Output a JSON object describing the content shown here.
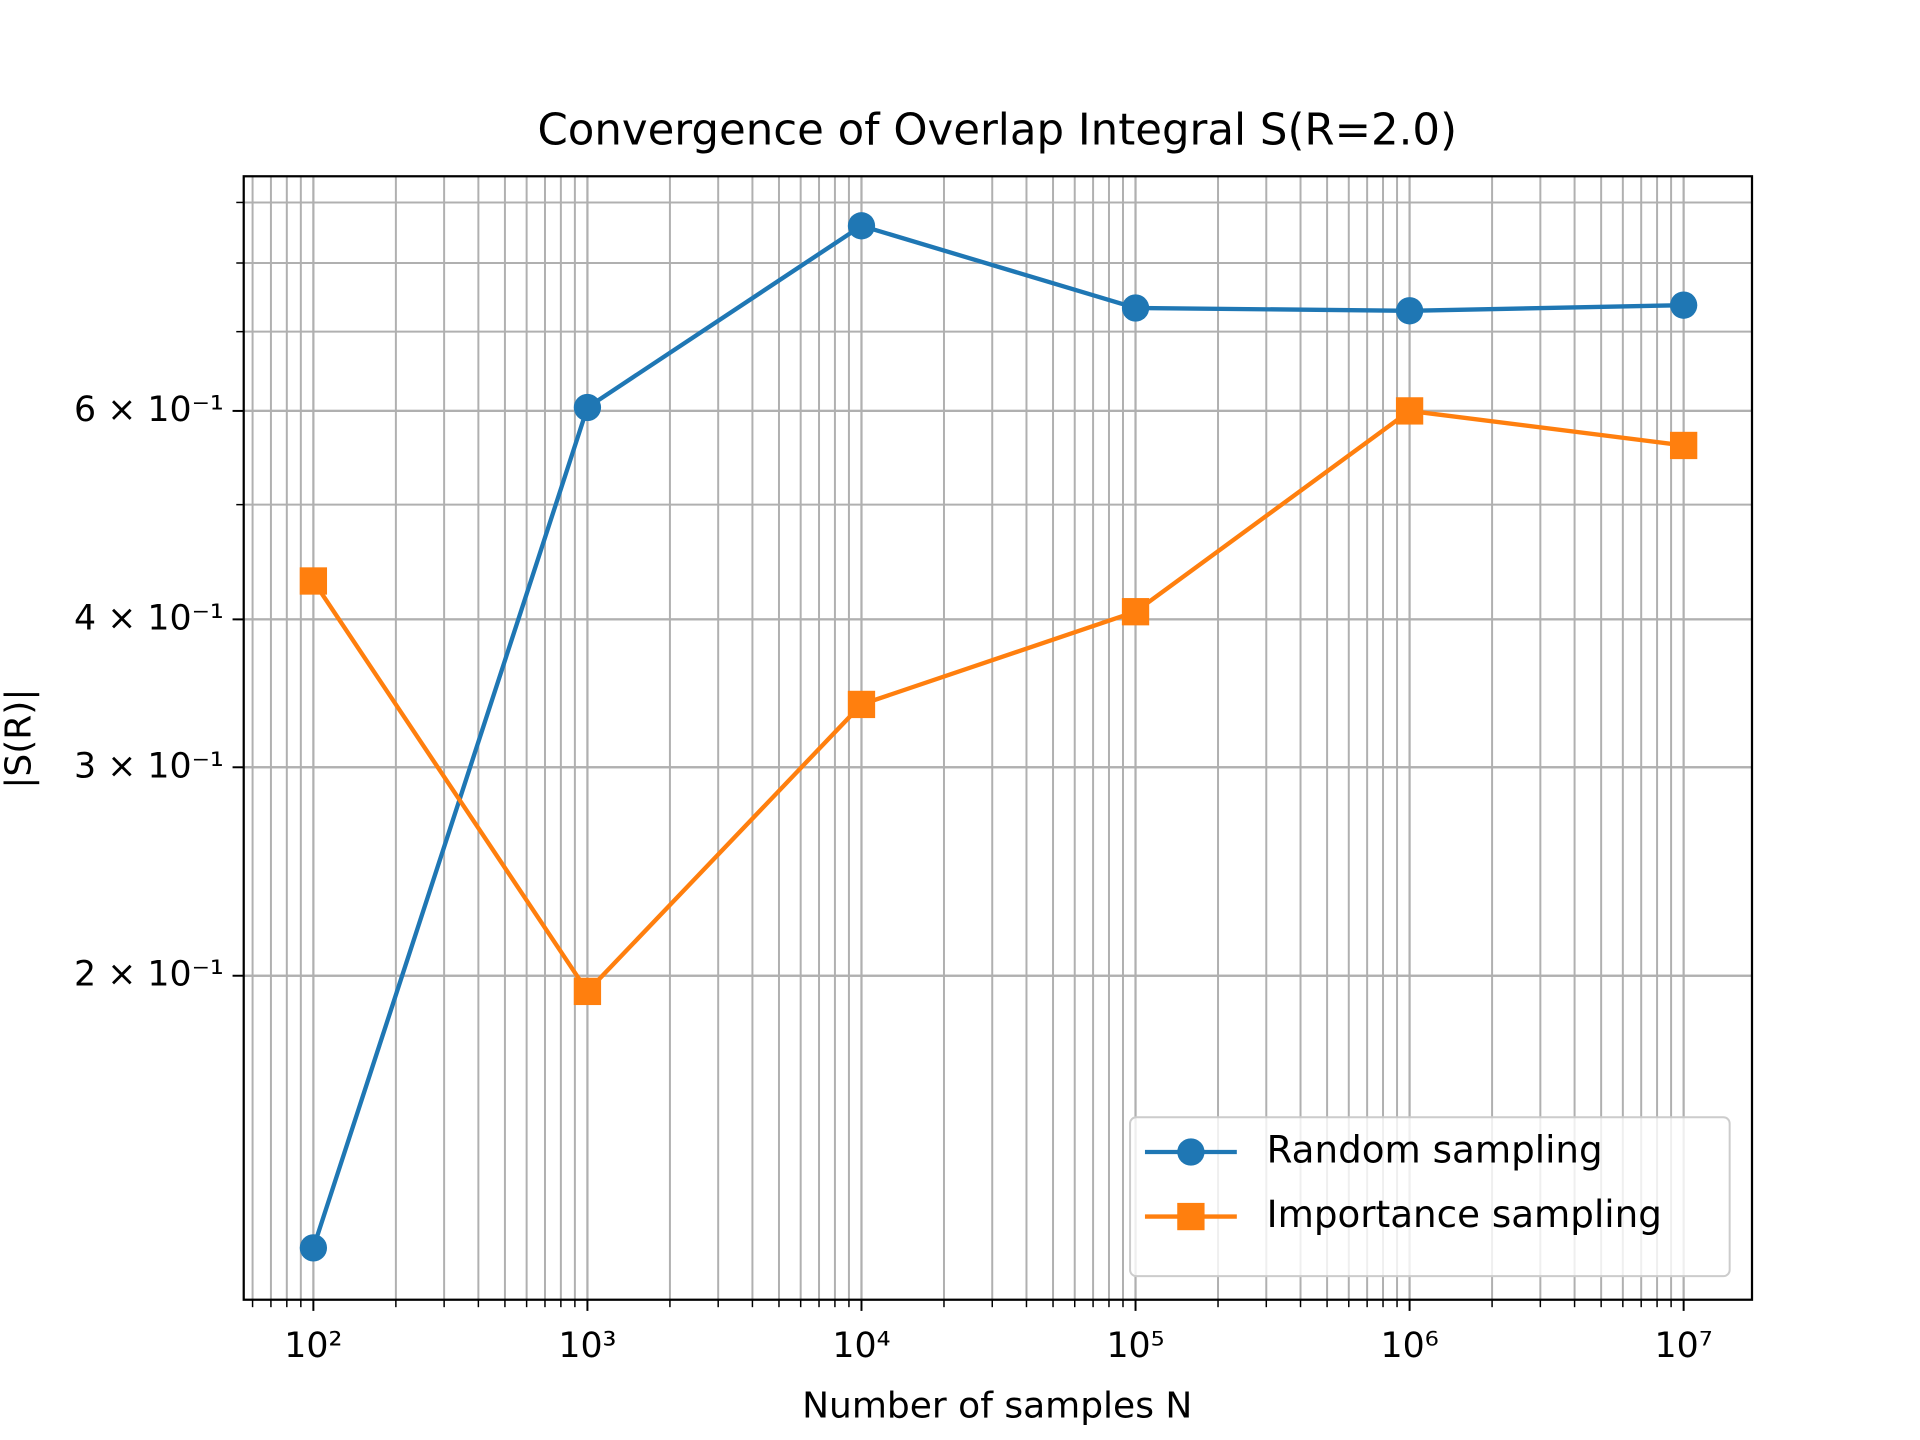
{
  "chart_data": {
    "type": "line",
    "title": "Convergence of Overlap Integral S(R=2.0)",
    "x_label": "Number of samples N",
    "y_label": "|S(R)|",
    "x": [
      100,
      1000,
      10000,
      100000,
      1000000,
      10000000
    ],
    "series": [
      {
        "name": "Random sampling",
        "color": "#1f77b4",
        "marker": "circle",
        "values": [
          0.1178,
          0.604,
          0.86,
          0.733,
          0.729,
          0.737
        ]
      },
      {
        "name": "Importance sampling",
        "color": "#ff7f0e",
        "marker": "square",
        "values": [
          0.431,
          0.194,
          0.339,
          0.406,
          0.6,
          0.561
        ]
      }
    ],
    "x_log": true,
    "y_log": true,
    "xlim": [
      55.7,
      17760000
    ],
    "ylim": [
      0.1065,
      0.947
    ],
    "xticks": [
      {
        "value": 100,
        "label": "10²"
      },
      {
        "value": 1000,
        "label": "10³"
      },
      {
        "value": 10000,
        "label": "10⁴"
      },
      {
        "value": 100000,
        "label": "10⁵"
      },
      {
        "value": 1000000,
        "label": "10⁶"
      },
      {
        "value": 10000000,
        "label": "10⁷"
      }
    ],
    "yticks": [
      {
        "value": 0.2,
        "label": "2 × 10⁻¹"
      },
      {
        "value": 0.3,
        "label": "3 × 10⁻¹"
      },
      {
        "value": 0.4,
        "label": "4 × 10⁻¹"
      },
      {
        "value": 0.6,
        "label": "6 × 10⁻¹"
      }
    ],
    "grid": true,
    "minor_grid": true,
    "legend": "lower right"
  }
}
